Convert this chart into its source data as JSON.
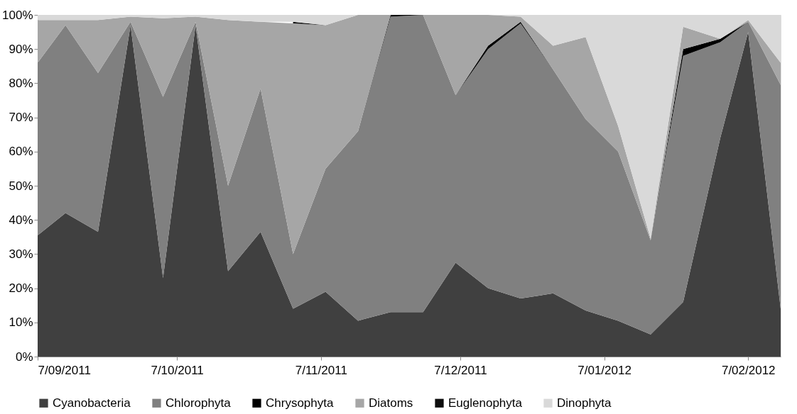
{
  "chart_data": {
    "type": "area",
    "stacked": true,
    "x": [
      "2011-09-07",
      "2011-09-13",
      "2011-09-20",
      "2011-09-27",
      "2011-10-04",
      "2011-10-11",
      "2011-10-18",
      "2011-10-25",
      "2011-11-01",
      "2011-11-08",
      "2011-11-15",
      "2011-11-22",
      "2011-11-29",
      "2011-12-06",
      "2011-12-13",
      "2011-12-20",
      "2011-12-27",
      "2012-01-03",
      "2012-01-10",
      "2012-01-17",
      "2012-01-24",
      "2012-02-01",
      "2012-02-07",
      "2012-02-14"
    ],
    "series": [
      {
        "name": "Cyanobacteria",
        "color": "#404040",
        "values": [
          35.5,
          42,
          36.5,
          97,
          23,
          97,
          25,
          36.5,
          14,
          19,
          10.5,
          13,
          13,
          27.5,
          20,
          17,
          18.5,
          13.5,
          10.5,
          6.5,
          16,
          64,
          95,
          14
        ]
      },
      {
        "name": "Chlorophyta",
        "color": "#808080",
        "values": [
          50.5,
          55,
          46.5,
          1,
          53,
          1,
          25,
          42,
          16,
          36,
          55.5,
          86.5,
          87,
          49,
          70,
          80.5,
          65.5,
          56,
          49.5,
          27.5,
          72,
          28,
          3,
          65.5
        ]
      },
      {
        "name": "Chrysophyta",
        "color": "#000000",
        "values": [
          null,
          null,
          null,
          null,
          null,
          null,
          null,
          null,
          null,
          null,
          0,
          0.5,
          0,
          0,
          1,
          0.5,
          0,
          null,
          null,
          0,
          2,
          1,
          0,
          null
        ]
      },
      {
        "name": "Diatoms",
        "color": "#a6a6a6",
        "values": [
          12.5,
          1.5,
          15.5,
          1.5,
          23,
          1.5,
          48.5,
          19.5,
          67.5,
          42,
          34,
          0,
          0,
          23.5,
          9,
          1.5,
          7,
          24,
          7.5,
          0.5,
          6.5,
          0,
          0.5,
          6.5
        ]
      },
      {
        "name": "Euglenophyta",
        "color": "#0d0d0d",
        "values": [
          null,
          null,
          null,
          null,
          null,
          null,
          null,
          null,
          0.5,
          0,
          null,
          null,
          null,
          null,
          null,
          null,
          null,
          null,
          null,
          null,
          null,
          null,
          null,
          null
        ]
      },
      {
        "name": "Dinophyta",
        "color": "#d9d9d9",
        "values": [
          1.5,
          1.5,
          1.5,
          0.5,
          1,
          0.5,
          1.5,
          2,
          2,
          3,
          0,
          0,
          0,
          0,
          0,
          0.5,
          9,
          6.5,
          32.5,
          65.5,
          3.5,
          7,
          1.5,
          14
        ]
      }
    ],
    "xlim": [
      "2011-09-07",
      "2012-02-14"
    ],
    "xticks": [
      {
        "value": "2011-09-07",
        "label": "7/09/2011"
      },
      {
        "value": "2011-10-07",
        "label": "7/10/2011"
      },
      {
        "value": "2011-11-07",
        "label": "7/11/2011"
      },
      {
        "value": "2011-12-07",
        "label": "7/12/2011"
      },
      {
        "value": "2012-01-07",
        "label": "7/01/2012"
      },
      {
        "value": "2012-02-07",
        "label": "7/02/2012"
      }
    ],
    "ylim": [
      0,
      100
    ],
    "yticks": [
      {
        "value": 0,
        "label": "0%"
      },
      {
        "value": 10,
        "label": "10%"
      },
      {
        "value": 20,
        "label": "20%"
      },
      {
        "value": 30,
        "label": "30%"
      },
      {
        "value": 40,
        "label": "40%"
      },
      {
        "value": 50,
        "label": "50%"
      },
      {
        "value": 60,
        "label": "60%"
      },
      {
        "value": 70,
        "label": "70%"
      },
      {
        "value": 80,
        "label": "80%"
      },
      {
        "value": 90,
        "label": "90%"
      },
      {
        "value": 100,
        "label": "100%"
      }
    ],
    "grid": false,
    "legend": "bottom"
  }
}
